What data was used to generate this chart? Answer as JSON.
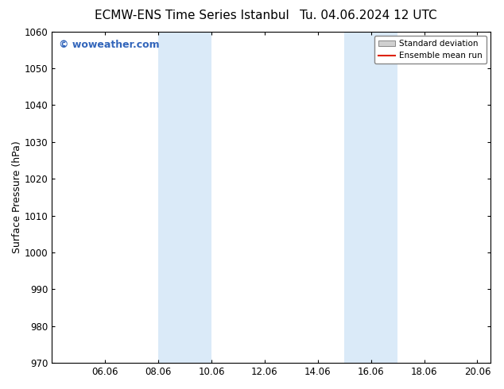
{
  "title_left": "ECMW-ENS Time Series Istanbul",
  "title_right": "Tu. 04.06.2024 12 UTC",
  "ylabel": "Surface Pressure (hPa)",
  "ylim": [
    970,
    1060
  ],
  "yticks": [
    970,
    980,
    990,
    1000,
    1010,
    1020,
    1030,
    1040,
    1050,
    1060
  ],
  "bg_color": "#ffffff",
  "plot_bg_color": "#ffffff",
  "shaded_regions": [
    {
      "x_start": 8.0,
      "x_end": 10.0
    },
    {
      "x_start": 15.0,
      "x_end": 17.0
    }
  ],
  "shade_color": "#daeaf8",
  "watermark_text": "© woweather.com",
  "watermark_color": "#3366bb",
  "legend_std_label": "Standard deviation",
  "legend_ens_label": "Ensemble mean run",
  "legend_std_facecolor": "#d0d0d0",
  "legend_std_edgecolor": "#888888",
  "legend_ens_color": "#dd2200",
  "title_fontsize": 11,
  "axis_label_fontsize": 9,
  "tick_fontsize": 8.5,
  "watermark_fontsize": 9,
  "x_xlim_start": 4.0,
  "x_xlim_end": 20.5,
  "x_numeric_ticks": [
    6.0,
    8.0,
    10.0,
    12.0,
    14.0,
    16.0,
    18.0,
    20.0
  ],
  "x_tick_labels": [
    "06.06",
    "08.06",
    "10.06",
    "12.06",
    "14.06",
    "16.06",
    "18.06",
    "20.06"
  ]
}
